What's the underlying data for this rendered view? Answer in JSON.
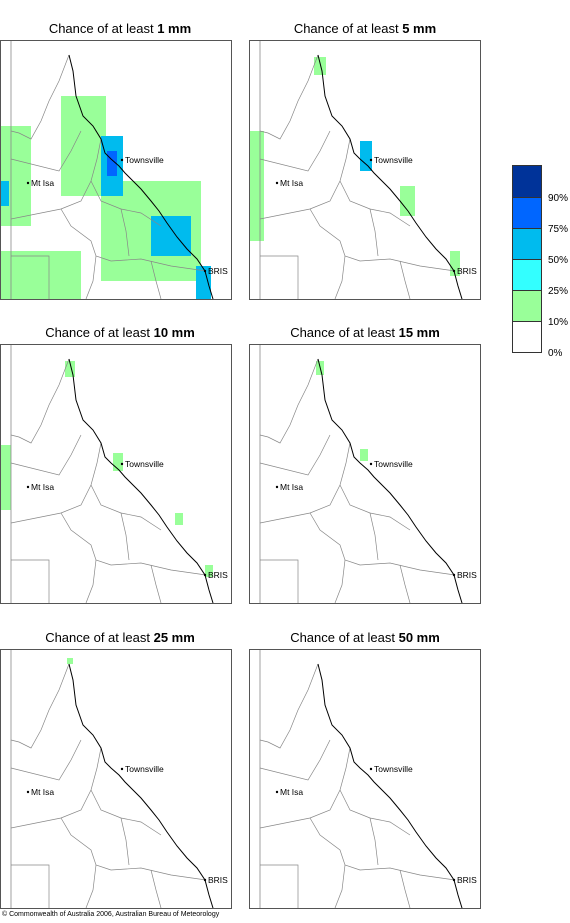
{
  "panels": [
    {
      "prefix": "Chance of at least ",
      "amount": "1 mm"
    },
    {
      "prefix": "Chance of at least ",
      "amount": "5 mm"
    },
    {
      "prefix": "Chance of at least ",
      "amount": "10 mm"
    },
    {
      "prefix": "Chance of at least ",
      "amount": "15 mm"
    },
    {
      "prefix": "Chance of at least ",
      "amount": "25 mm"
    },
    {
      "prefix": "Chance of at least ",
      "amount": "50 mm"
    }
  ],
  "places": {
    "townsville": "Townsville",
    "mt_isa": "Mt Isa",
    "bris": "BRIS"
  },
  "legend": {
    "colors": [
      "#003399",
      "#0066ff",
      "#00bbee",
      "#33ffff",
      "#99ff99",
      "#ffffff"
    ],
    "labels": [
      "90%",
      "75%",
      "50%",
      "25%",
      "10%",
      "0%"
    ]
  },
  "footer": "© Commonwealth of Australia 2006, Australian Bureau of Meteorology"
}
